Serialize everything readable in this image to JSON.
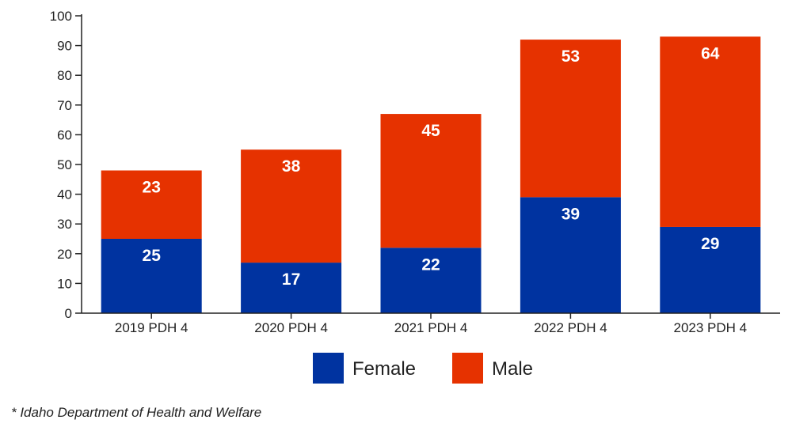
{
  "chart_data": {
    "type": "bar",
    "stacked": true,
    "categories": [
      "2019 PDH 4",
      "2020 PDH 4",
      "2021 PDH 4",
      "2022 PDH 4",
      "2023 PDH 4"
    ],
    "series": [
      {
        "name": "Female",
        "color": "#0033A0",
        "values": [
          25,
          17,
          22,
          39,
          29
        ]
      },
      {
        "name": "Male",
        "color": "#E63200",
        "values": [
          23,
          38,
          45,
          53,
          64
        ]
      }
    ],
    "ylim": [
      0,
      100
    ],
    "yticks": [
      0,
      10,
      20,
      30,
      40,
      50,
      60,
      70,
      80,
      90,
      100
    ],
    "title": "",
    "xlabel": "",
    "ylabel": "",
    "legend": "bottom-center",
    "grid": false
  },
  "footnote": "* Idaho Department of Health and Welfare"
}
